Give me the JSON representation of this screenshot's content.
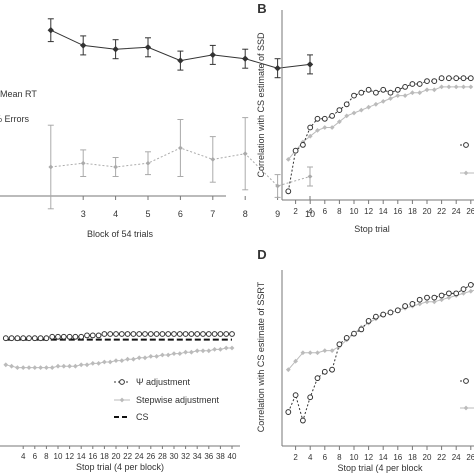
{
  "chart_data": [
    {
      "type": "line",
      "panel": "A",
      "panel_label": "",
      "xlabel": "Block of 54 trials",
      "ylabel": "",
      "x": [
        2,
        3,
        4,
        5,
        6,
        7,
        8,
        9,
        10
      ],
      "x_tick_labels": [
        "3",
        "4",
        "5",
        "6",
        "7",
        "8",
        "9",
        "10"
      ],
      "series": [
        {
          "name": "Mean RT",
          "legend_text": "Mean RT",
          "marker": "filled-diamond",
          "color": "#333333",
          "values": [
            0.82,
            0.74,
            0.72,
            0.73,
            0.66,
            0.69,
            0.67,
            0.62,
            0.64
          ],
          "err": [
            0.06,
            0.05,
            0.05,
            0.05,
            0.05,
            0.05,
            0.05,
            0.05,
            0.05
          ]
        },
        {
          "name": "% Errors",
          "legend_text": "% Errors",
          "marker": "gray-diamond",
          "color": "#aaaaaa",
          "values": [
            0.1,
            0.12,
            0.1,
            0.12,
            0.2,
            0.14,
            0.17,
            0.0,
            0.05
          ],
          "err": [
            0.22,
            0.07,
            0.05,
            0.06,
            0.15,
            0.12,
            0.19,
            0.06,
            0.05
          ]
        }
      ]
    },
    {
      "type": "line",
      "panel": "B",
      "panel_label": "B",
      "xlabel": "Stop trial",
      "ylabel": "Correlation with CS estimate of SSD",
      "x_ticks": [
        2,
        4,
        6,
        8,
        10,
        12,
        14,
        16,
        18,
        20,
        22,
        24,
        26
      ],
      "series": [
        {
          "name": "Ψ adjustment",
          "marker": "open-circle",
          "color": "#333333",
          "x": [
            1,
            2,
            3,
            4,
            5,
            6,
            7,
            8,
            9,
            10,
            11,
            12,
            13,
            14,
            15,
            16,
            17,
            18,
            19,
            20,
            21,
            22,
            23,
            24,
            25,
            26
          ],
          "values": [
            0.53,
            0.67,
            0.69,
            0.75,
            0.78,
            0.78,
            0.79,
            0.81,
            0.83,
            0.86,
            0.87,
            0.88,
            0.87,
            0.88,
            0.87,
            0.88,
            0.89,
            0.9,
            0.9,
            0.91,
            0.91,
            0.92,
            0.92,
            0.92,
            0.92,
            0.92
          ]
        },
        {
          "name": "Stepwise adjustment",
          "marker": "gray-diamond",
          "color": "#bbbbbb",
          "x": [
            1,
            2,
            3,
            4,
            5,
            6,
            7,
            8,
            9,
            10,
            11,
            12,
            13,
            14,
            15,
            16,
            17,
            18,
            19,
            20,
            21,
            22,
            23,
            24,
            25,
            26
          ],
          "values": [
            0.64,
            0.67,
            0.7,
            0.72,
            0.74,
            0.75,
            0.75,
            0.77,
            0.79,
            0.8,
            0.81,
            0.82,
            0.83,
            0.84,
            0.85,
            0.86,
            0.86,
            0.87,
            0.87,
            0.88,
            0.88,
            0.89,
            0.89,
            0.89,
            0.89,
            0.89
          ]
        }
      ]
    },
    {
      "type": "line",
      "panel": "C",
      "panel_label": "",
      "xlabel": "Stop trial (4 per block)",
      "ylabel": "",
      "x_ticks": [
        4,
        6,
        8,
        10,
        12,
        14,
        16,
        18,
        20,
        22,
        24,
        26,
        28,
        30,
        32,
        34,
        36,
        38,
        40
      ],
      "x_tick_labels": [
        "4",
        "6",
        "8",
        "10",
        "12",
        "14",
        "16",
        "18",
        "20",
        "22",
        "24",
        "26",
        "28",
        "30",
        "32",
        "34",
        "36",
        "38",
        "40"
      ],
      "legend": [
        "Ψ adjustment",
        "Stepwise adjustment",
        "CS"
      ],
      "series": [
        {
          "name": "Ψ adjustment",
          "marker": "open-circle",
          "color": "#333333",
          "x": [
            1,
            2,
            3,
            4,
            5,
            6,
            7,
            8,
            9,
            10,
            11,
            12,
            13,
            14,
            15,
            16,
            17,
            18,
            19,
            20,
            21,
            22,
            23,
            24,
            25,
            26,
            27,
            28,
            29,
            30,
            31,
            32,
            33,
            34,
            35,
            36,
            37,
            38,
            39,
            40
          ],
          "values": [
            0.77,
            0.77,
            0.77,
            0.77,
            0.77,
            0.77,
            0.77,
            0.77,
            0.78,
            0.78,
            0.78,
            0.78,
            0.78,
            0.78,
            0.79,
            0.79,
            0.79,
            0.8,
            0.8,
            0.8,
            0.8,
            0.8,
            0.8,
            0.8,
            0.8,
            0.8,
            0.8,
            0.8,
            0.8,
            0.8,
            0.8,
            0.8,
            0.8,
            0.8,
            0.8,
            0.8,
            0.8,
            0.8,
            0.8,
            0.8
          ]
        },
        {
          "name": "Stepwise adjustment",
          "marker": "gray-diamond",
          "color": "#bbbbbb",
          "x": [
            1,
            2,
            3,
            4,
            5,
            6,
            7,
            8,
            9,
            10,
            11,
            12,
            13,
            14,
            15,
            16,
            17,
            18,
            19,
            20,
            21,
            22,
            23,
            24,
            25,
            26,
            27,
            28,
            29,
            30,
            31,
            32,
            33,
            34,
            35,
            36,
            37,
            38,
            39,
            40
          ],
          "values": [
            0.58,
            0.57,
            0.56,
            0.56,
            0.56,
            0.56,
            0.56,
            0.56,
            0.56,
            0.57,
            0.57,
            0.57,
            0.57,
            0.58,
            0.58,
            0.59,
            0.59,
            0.6,
            0.6,
            0.61,
            0.61,
            0.62,
            0.62,
            0.63,
            0.63,
            0.64,
            0.64,
            0.65,
            0.65,
            0.66,
            0.66,
            0.67,
            0.67,
            0.68,
            0.68,
            0.68,
            0.69,
            0.69,
            0.7,
            0.7
          ]
        },
        {
          "name": "CS",
          "marker": "dashed-line",
          "color": "#111111",
          "style": "dashed",
          "x": [
            1,
            40
          ],
          "values": [
            0.76,
            0.76
          ]
        }
      ]
    },
    {
      "type": "line",
      "panel": "D",
      "panel_label": "D",
      "xlabel": "Stop trial (4 per block",
      "ylabel": "Correlation with CS estimate of SSRT",
      "x_ticks": [
        2,
        4,
        6,
        8,
        10,
        12,
        14,
        16,
        18,
        20,
        22,
        24,
        26
      ],
      "series": [
        {
          "name": "Ψ adjustment",
          "marker": "open-circle",
          "color": "#333333",
          "x": [
            1,
            2,
            3,
            4,
            5,
            6,
            7,
            8,
            9,
            10,
            11,
            12,
            13,
            14,
            15,
            16,
            17,
            18,
            19,
            20,
            21,
            22,
            23,
            24,
            25,
            26,
            27
          ],
          "values": [
            0.16,
            0.24,
            0.12,
            0.23,
            0.32,
            0.35,
            0.36,
            0.48,
            0.51,
            0.53,
            0.55,
            0.59,
            0.61,
            0.62,
            0.63,
            0.64,
            0.66,
            0.67,
            0.69,
            0.7,
            0.7,
            0.71,
            0.72,
            0.72,
            0.74,
            0.76,
            0.77
          ]
        },
        {
          "name": "Stepwise adjustment",
          "marker": "gray-diamond",
          "color": "#bbbbbb",
          "x": [
            1,
            2,
            3,
            4,
            5,
            6,
            7,
            8,
            9,
            10,
            11,
            12,
            13,
            14,
            15,
            16,
            17,
            18,
            19,
            20,
            21,
            22,
            23,
            24,
            25,
            26,
            27
          ],
          "values": [
            0.36,
            0.4,
            0.44,
            0.44,
            0.44,
            0.45,
            0.45,
            0.47,
            0.5,
            0.53,
            0.56,
            0.58,
            0.6,
            0.62,
            0.63,
            0.64,
            0.65,
            0.66,
            0.67,
            0.68,
            0.68,
            0.69,
            0.7,
            0.71,
            0.72,
            0.73,
            0.74
          ]
        }
      ]
    }
  ]
}
